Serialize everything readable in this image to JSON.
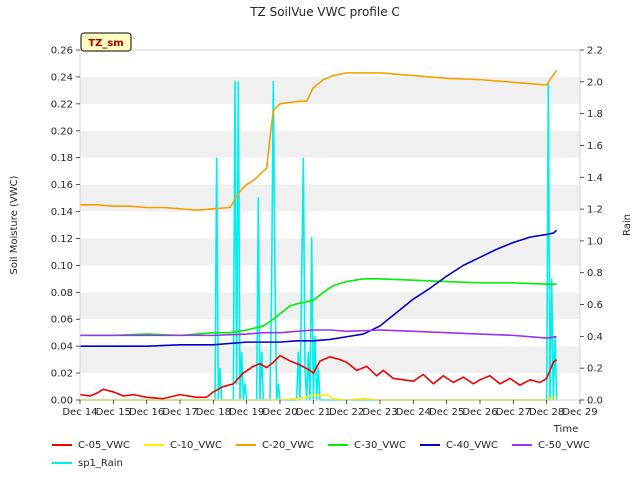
{
  "chart_data": {
    "type": "line",
    "title": "TZ SoilVue VWC profile C",
    "station_badge": "TZ_sm",
    "xlabel": "Time",
    "ylabel_left": "Soil Moisture (VWC)",
    "ylabel_right": "Rain",
    "x_ticks": [
      "Dec 14",
      "Dec 15",
      "Dec 16",
      "Dec 17",
      "Dec 18",
      "Dec 19",
      "Dec 20",
      "Dec 21",
      "Dec 22",
      "Dec 23",
      "Dec 24",
      "Dec 25",
      "Dec 26",
      "Dec 27",
      "Dec 28",
      "Dec 29"
    ],
    "x_range_days": [
      14,
      29
    ],
    "y_left_range": [
      0,
      0.26
    ],
    "y_left_ticks": [
      "0.00",
      "0.02",
      "0.04",
      "0.06",
      "0.08",
      "0.10",
      "0.12",
      "0.14",
      "0.16",
      "0.18",
      "0.20",
      "0.22",
      "0.24",
      "0.26"
    ],
    "y_right_range": [
      0,
      2.2
    ],
    "y_right_ticks": [
      "0.0",
      "0.2",
      "0.4",
      "0.6",
      "0.8",
      "1.0",
      "1.2",
      "1.4",
      "1.6",
      "1.8",
      "2.0",
      "2.2"
    ],
    "grid": "alternating horizontal bands",
    "legend_position": "bottom",
    "series": [
      {
        "name": "C-05_VWC",
        "color": "#ee0000",
        "axis": "left",
        "x": [
          14.0,
          14.3,
          14.5,
          14.7,
          15.0,
          15.3,
          15.6,
          16.0,
          16.5,
          17.0,
          17.5,
          17.8,
          18.0,
          18.3,
          18.6,
          18.9,
          19.2,
          19.4,
          19.6,
          19.8,
          20.0,
          20.3,
          20.6,
          20.9,
          21.0,
          21.2,
          21.5,
          21.8,
          22.0,
          22.3,
          22.6,
          22.9,
          23.1,
          23.4,
          23.7,
          24.0,
          24.3,
          24.6,
          24.9,
          25.2,
          25.5,
          25.8,
          26.0,
          26.3,
          26.6,
          26.9,
          27.2,
          27.5,
          27.8,
          28.0,
          28.2,
          28.3
        ],
        "y": [
          0.004,
          0.003,
          0.005,
          0.008,
          0.006,
          0.003,
          0.004,
          0.002,
          0.001,
          0.004,
          0.002,
          0.002,
          0.006,
          0.01,
          0.012,
          0.02,
          0.025,
          0.027,
          0.024,
          0.028,
          0.033,
          0.029,
          0.026,
          0.022,
          0.02,
          0.029,
          0.032,
          0.03,
          0.028,
          0.022,
          0.025,
          0.018,
          0.022,
          0.016,
          0.015,
          0.014,
          0.019,
          0.012,
          0.018,
          0.013,
          0.017,
          0.012,
          0.015,
          0.018,
          0.012,
          0.016,
          0.011,
          0.015,
          0.013,
          0.016,
          0.028,
          0.03
        ]
      },
      {
        "name": "C-10_VWC",
        "color": "#ffee00",
        "axis": "left",
        "x": [
          14.0,
          15.0,
          16.0,
          17.0,
          18.0,
          19.0,
          20.0,
          20.5,
          20.8,
          21.0,
          21.2,
          21.4,
          21.6,
          22.0,
          22.5,
          23.0,
          24.0,
          25.0,
          26.0,
          27.0,
          28.0,
          28.2,
          28.3
        ],
        "y": [
          0.0,
          0.0,
          0.0,
          0.0,
          0.0,
          0.0,
          0.0,
          0.001,
          0.002,
          0.004,
          0.003,
          0.004,
          0.001,
          0.0,
          0.001,
          0.0,
          0.0,
          0.0,
          0.0,
          0.0,
          0.0,
          0.002,
          0.001
        ]
      },
      {
        "name": "C-20_VWC",
        "color": "#f5a000",
        "axis": "left",
        "x": [
          14.0,
          14.5,
          15.0,
          15.5,
          16.0,
          16.5,
          17.0,
          17.5,
          18.0,
          18.5,
          18.8,
          19.0,
          19.2,
          19.5,
          19.6,
          19.7,
          19.8,
          20.0,
          20.3,
          20.6,
          20.8,
          21.0,
          21.3,
          21.6,
          22.0,
          22.5,
          23.0,
          23.5,
          24.0,
          25.0,
          26.0,
          27.0,
          27.5,
          28.0,
          28.1,
          28.3
        ],
        "y": [
          0.145,
          0.145,
          0.144,
          0.144,
          0.143,
          0.143,
          0.142,
          0.141,
          0.142,
          0.143,
          0.155,
          0.16,
          0.163,
          0.17,
          0.172,
          0.195,
          0.215,
          0.22,
          0.221,
          0.222,
          0.222,
          0.232,
          0.238,
          0.241,
          0.243,
          0.243,
          0.243,
          0.242,
          0.241,
          0.239,
          0.238,
          0.236,
          0.235,
          0.234,
          0.238,
          0.245
        ]
      },
      {
        "name": "C-30_VWC",
        "color": "#00ee00",
        "axis": "left",
        "x": [
          14.0,
          15.0,
          16.0,
          17.0,
          18.0,
          18.5,
          19.0,
          19.5,
          19.8,
          20.0,
          20.3,
          20.6,
          21.0,
          21.3,
          21.6,
          22.0,
          22.5,
          23.0,
          24.0,
          25.0,
          26.0,
          27.0,
          28.0,
          28.3
        ],
        "y": [
          0.048,
          0.048,
          0.049,
          0.048,
          0.05,
          0.05,
          0.052,
          0.055,
          0.06,
          0.064,
          0.07,
          0.072,
          0.074,
          0.08,
          0.085,
          0.088,
          0.09,
          0.09,
          0.089,
          0.088,
          0.087,
          0.087,
          0.086,
          0.086
        ]
      },
      {
        "name": "C-40_VWC",
        "color": "#0000cc",
        "axis": "left",
        "x": [
          14.0,
          15.0,
          16.0,
          17.0,
          18.0,
          18.5,
          19.0,
          19.5,
          20.0,
          20.5,
          21.0,
          21.5,
          22.0,
          22.5,
          23.0,
          23.5,
          24.0,
          24.5,
          25.0,
          25.5,
          26.0,
          26.5,
          27.0,
          27.5,
          28.0,
          28.2,
          28.3
        ],
        "y": [
          0.04,
          0.04,
          0.04,
          0.041,
          0.041,
          0.042,
          0.043,
          0.043,
          0.043,
          0.044,
          0.044,
          0.045,
          0.047,
          0.049,
          0.055,
          0.065,
          0.075,
          0.083,
          0.092,
          0.1,
          0.106,
          0.112,
          0.117,
          0.121,
          0.123,
          0.124,
          0.126
        ]
      },
      {
        "name": "C-50_VWC",
        "color": "#9933ee",
        "axis": "left",
        "x": [
          14.0,
          15.0,
          16.0,
          17.0,
          18.0,
          19.0,
          19.5,
          20.0,
          21.0,
          21.5,
          22.0,
          23.0,
          24.0,
          25.0,
          26.0,
          27.0,
          28.0,
          28.3
        ],
        "y": [
          0.048,
          0.048,
          0.048,
          0.048,
          0.048,
          0.049,
          0.05,
          0.05,
          0.052,
          0.052,
          0.051,
          0.052,
          0.051,
          0.05,
          0.049,
          0.048,
          0.046,
          0.047
        ]
      },
      {
        "name": "sp1_Rain",
        "color": "#00eeee",
        "axis": "right",
        "x": [
          14.0,
          18.05,
          18.1,
          18.15,
          18.2,
          18.25,
          18.6,
          18.65,
          18.7,
          18.75,
          18.8,
          18.85,
          18.9,
          18.95,
          19.0,
          19.3,
          19.35,
          19.4,
          19.45,
          19.5,
          19.55,
          19.7,
          19.75,
          19.8,
          19.85,
          19.9,
          19.95,
          20.0,
          20.5,
          20.55,
          20.6,
          20.7,
          20.75,
          20.8,
          20.85,
          20.9,
          20.95,
          21.0,
          21.05,
          21.1,
          21.15,
          21.2,
          21.25,
          28.0,
          28.05,
          28.1,
          28.15,
          28.2,
          28.25,
          28.3
        ],
        "y": [
          0.0,
          0.0,
          1.52,
          0.0,
          0.2,
          0.0,
          0.0,
          2.0,
          0.1,
          2.0,
          0.0,
          0.3,
          0.0,
          0.1,
          0.0,
          0.0,
          1.27,
          0.0,
          0.3,
          0.0,
          0.0,
          0.0,
          0.76,
          2.0,
          0.76,
          0.0,
          0.1,
          0.0,
          0.0,
          0.3,
          0.0,
          1.52,
          0.2,
          0.0,
          0.3,
          0.0,
          1.02,
          0.0,
          0.4,
          0.0,
          0.2,
          0.0,
          0.0,
          0.0,
          2.0,
          0.0,
          0.76,
          0.0,
          0.4,
          0.0
        ]
      }
    ]
  }
}
